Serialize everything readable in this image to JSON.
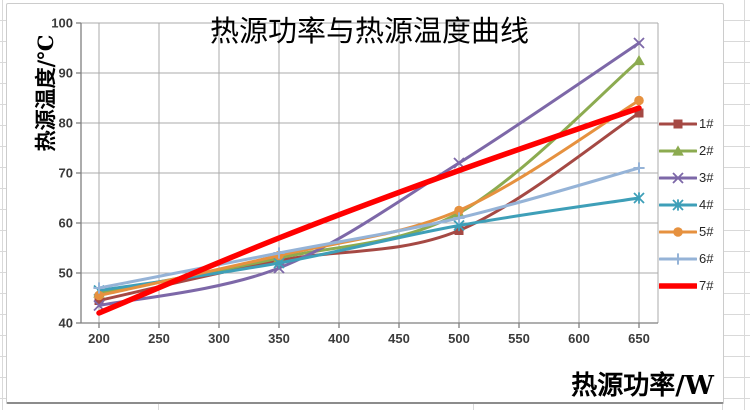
{
  "window": {
    "background": "#FFFFFF",
    "spreadsheet_gridline_color": "#D9D9D9",
    "chart_border_color": "#CCCCCC",
    "chart_bottom_border_color": "#8C8C8C"
  },
  "chart_data": {
    "type": "line",
    "title": "热源功率与热源温度曲线",
    "xlabel": "热源功率/W",
    "ylabel": "热源温度/℃",
    "x": [
      200,
      350,
      500,
      650
    ],
    "x_ticks": [
      200,
      250,
      300,
      350,
      400,
      450,
      500,
      550,
      600,
      650
    ],
    "y_ticks": [
      40,
      50,
      60,
      70,
      80,
      90,
      100
    ],
    "ylim": [
      40,
      100
    ],
    "xlim": [
      200,
      650
    ],
    "grid": true,
    "smooth_lines": true,
    "legend_position": "right",
    "grid_color": "#ABABAB",
    "axis_color": "#7F7F7F",
    "tick_label_color": "#3B3B3B",
    "series": [
      {
        "name": "1#",
        "marker": "square",
        "color": "#A54944",
        "line_width": 3,
        "values": [
          44.5,
          52.5,
          58.5,
          82
        ]
      },
      {
        "name": "2#",
        "marker": "triangle",
        "color": "#8CAB50",
        "line_width": 3,
        "values": [
          46,
          53,
          62,
          92.5
        ]
      },
      {
        "name": "3#",
        "marker": "x",
        "color": "#7D68A8",
        "line_width": 3,
        "values": [
          43.5,
          51,
          72,
          96
        ]
      },
      {
        "name": "4#",
        "marker": "star",
        "color": "#3E9FB8",
        "line_width": 3,
        "values": [
          46.5,
          52,
          59.5,
          65
        ]
      },
      {
        "name": "5#",
        "marker": "circle",
        "color": "#E6913F",
        "line_width": 3,
        "values": [
          45.5,
          53.5,
          62.5,
          84.5
        ]
      },
      {
        "name": "6#",
        "marker": "plus",
        "color": "#95B3D7",
        "line_width": 3,
        "values": [
          47,
          54,
          61,
          71
        ]
      },
      {
        "name": "7#",
        "marker": "none",
        "color": "#FF0000",
        "line_width": 5.5,
        "values": [
          42,
          57,
          70.5,
          83
        ]
      }
    ]
  }
}
